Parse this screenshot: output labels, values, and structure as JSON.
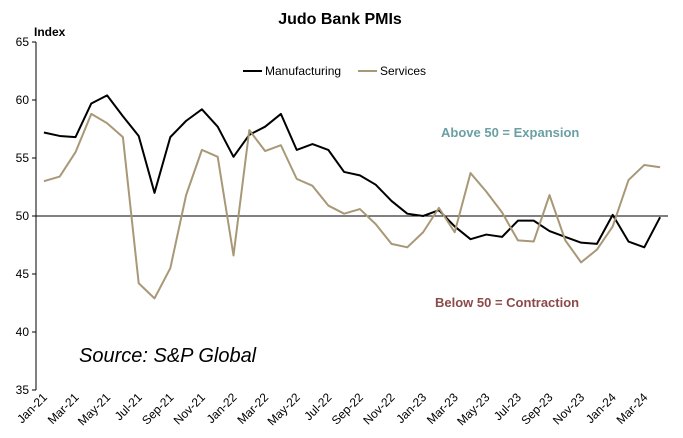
{
  "chart_data": {
    "type": "line",
    "title": "Judo Bank PMIs",
    "ylabel": "Index",
    "ylim": [
      35,
      65
    ],
    "yticks": [
      35,
      40,
      45,
      50,
      55,
      60,
      65
    ],
    "x": [
      "Jan-21",
      "Feb-21",
      "Mar-21",
      "Apr-21",
      "May-21",
      "Jun-21",
      "Jul-21",
      "Aug-21",
      "Sep-21",
      "Oct-21",
      "Nov-21",
      "Dec-21",
      "Jan-22",
      "Feb-22",
      "Mar-22",
      "Apr-22",
      "May-22",
      "Jun-22",
      "Jul-22",
      "Aug-22",
      "Sep-22",
      "Oct-22",
      "Nov-22",
      "Dec-22",
      "Jan-23",
      "Feb-23",
      "Mar-23",
      "Apr-23",
      "May-23",
      "Jun-23",
      "Jul-23",
      "Aug-23",
      "Sep-23",
      "Oct-23",
      "Nov-23",
      "Dec-23",
      "Jan-24",
      "Feb-24",
      "Mar-24",
      "Apr-24"
    ],
    "xtick_labels": [
      "Jan-21",
      "Mar-21",
      "May-21",
      "Jul-21",
      "Sep-21",
      "Nov-21",
      "Jan-22",
      "Mar-22",
      "May-22",
      "Jul-22",
      "Sep-22",
      "Nov-22",
      "Jan-23",
      "Mar-23",
      "May-23",
      "Jul-23",
      "Sep-23",
      "Nov-23",
      "Jan-24",
      "Mar-24"
    ],
    "series": [
      {
        "name": "Manufacturing",
        "color": "#000000",
        "values": [
          57.2,
          56.9,
          56.8,
          59.7,
          60.4,
          58.6,
          56.9,
          52.0,
          56.8,
          58.2,
          59.2,
          57.7,
          55.1,
          57.0,
          57.7,
          58.8,
          55.7,
          56.2,
          55.7,
          53.8,
          53.5,
          52.7,
          51.3,
          50.2,
          50.0,
          50.5,
          49.1,
          48.0,
          48.4,
          48.2,
          49.6,
          49.6,
          48.7,
          48.2,
          47.7,
          47.6,
          50.1,
          47.8,
          47.3,
          49.9
        ]
      },
      {
        "name": "Services",
        "color": "#a89877",
        "values": [
          53.0,
          53.4,
          55.5,
          58.8,
          58.0,
          56.8,
          44.2,
          42.9,
          45.5,
          51.8,
          55.7,
          55.1,
          46.6,
          57.4,
          55.6,
          56.1,
          53.2,
          52.6,
          50.9,
          50.2,
          50.6,
          49.3,
          47.6,
          47.3,
          48.6,
          50.7,
          48.6,
          53.7,
          52.1,
          50.3,
          47.9,
          47.8,
          51.8,
          47.9,
          46.0,
          47.1,
          49.1,
          53.1,
          54.4,
          54.2
        ]
      }
    ],
    "legend_position": "top-center",
    "grid": false,
    "reference_line": 50,
    "annotations": [
      {
        "text": "Above 50 = Expansion",
        "color": "#6a9fa3"
      },
      {
        "text": "Below 50 = Contraction",
        "color": "#8a4a48"
      }
    ],
    "source_note": "Source: S&P Global"
  }
}
